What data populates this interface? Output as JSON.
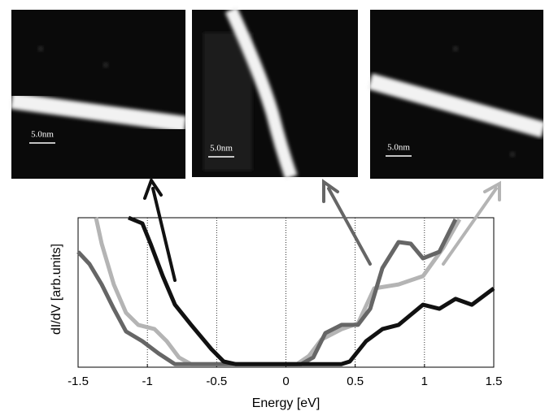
{
  "chart_data": {
    "type": "line",
    "xlabel": "Energy [eV]",
    "ylabel": "dI/dV [arb.units]",
    "xlim": [
      -1.5,
      1.5
    ],
    "xticks": [
      -1.5,
      -1,
      -0.5,
      0,
      0.5,
      1,
      1.5
    ],
    "ylim": [
      0,
      1
    ],
    "grid": true,
    "series": [
      {
        "color": "#111111",
        "x": [
          -1.136,
          -1.036,
          -0.977,
          -0.889,
          -0.801,
          -0.684,
          -0.537,
          -0.449,
          -0.361,
          0.4,
          0.461,
          0.578,
          0.696,
          0.813,
          0.989,
          1.107,
          1.224,
          1.342,
          1.5
        ],
        "values": [
          1.0,
          0.962,
          0.826,
          0.609,
          0.418,
          0.283,
          0.12,
          0.038,
          0.02,
          0.02,
          0.038,
          0.174,
          0.255,
          0.283,
          0.418,
          0.391,
          0.457,
          0.418,
          0.527
        ]
      },
      {
        "color": "#666666",
        "x": [
          -1.5,
          -1.418,
          -1.33,
          -1.242,
          -1.154,
          -1.036,
          -0.919,
          -0.801,
          0.109,
          0.197,
          0.285,
          0.402,
          0.52,
          0.608,
          0.696,
          0.813,
          0.901,
          0.989,
          1.107,
          1.224
        ],
        "values": [
          0.772,
          0.69,
          0.554,
          0.391,
          0.239,
          0.174,
          0.092,
          0.02,
          0.02,
          0.065,
          0.228,
          0.283,
          0.283,
          0.391,
          0.663,
          0.837,
          0.826,
          0.728,
          0.772,
          0.989
        ]
      },
      {
        "color": "#b4b4b4",
        "x": [
          -1.371,
          -1.33,
          -1.242,
          -1.154,
          -1.066,
          -0.948,
          -0.86,
          -0.772,
          -0.684,
          0.079,
          0.167,
          0.256,
          0.402,
          0.52,
          0.637,
          0.813,
          0.989,
          1.136,
          1.253
        ],
        "values": [
          1.0,
          0.826,
          0.554,
          0.364,
          0.283,
          0.255,
          0.174,
          0.065,
          0.02,
          0.02,
          0.076,
          0.185,
          0.255,
          0.293,
          0.527,
          0.554,
          0.609,
          0.799,
          0.989
        ]
      }
    ]
  },
  "images": [
    {
      "scale_label": "5.0nm"
    },
    {
      "scale_label": "5.0nm"
    },
    {
      "scale_label": "5.0nm"
    }
  ]
}
